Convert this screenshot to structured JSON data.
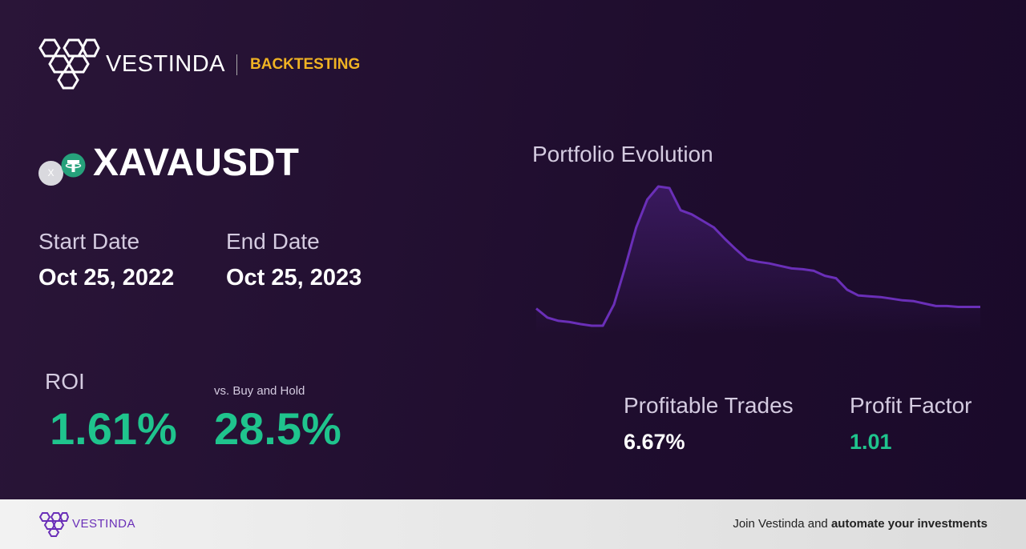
{
  "header": {
    "brand": "VESTINDA",
    "section": "BACKTESTING"
  },
  "asset": {
    "badge": "X",
    "symbol": "XAVAUSDT"
  },
  "dates": {
    "start_label": "Start Date",
    "start": "Oct 25, 2022",
    "end_label": "End Date",
    "end": "Oct 25, 2023"
  },
  "roi": {
    "label": "ROI",
    "value": "1.61%",
    "compare_label": "vs. Buy and Hold",
    "compare_value": "28.5%"
  },
  "stats": {
    "trades_label": "Profitable Trades",
    "trades_value": "6.67%",
    "factor_label": "Profit Factor",
    "factor_value": "1.01"
  },
  "chart_data": {
    "type": "line",
    "title": "Portfolio Evolution",
    "color": "#6a2fb8",
    "values": [
      35,
      24,
      20,
      18.5,
      16,
      14,
      14,
      40,
      85,
      134,
      168,
      184,
      182,
      155,
      150,
      142,
      134,
      120,
      107,
      95,
      92,
      90,
      87,
      84,
      83,
      81,
      75,
      72,
      58,
      51,
      50,
      49,
      47,
      45,
      44,
      41,
      38,
      38,
      37,
      37,
      37
    ]
  },
  "footer": {
    "brand": "VESTINDA",
    "text_plain": "Join Vestinda and",
    "text_bold": "automate your investments"
  }
}
